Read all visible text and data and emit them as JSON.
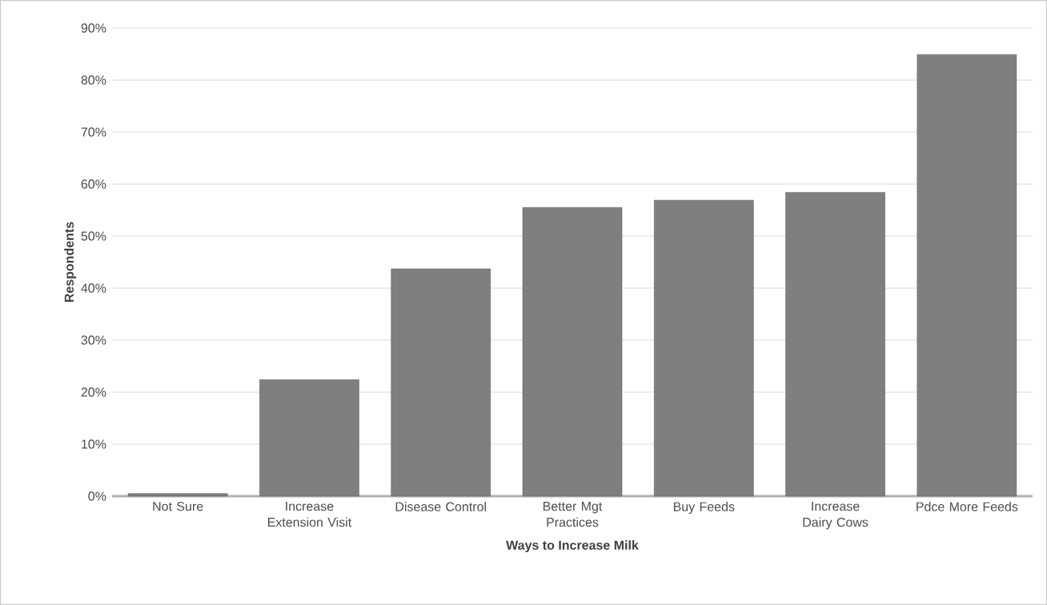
{
  "chart_data": {
    "type": "bar",
    "xlabel": "Ways to Increase Milk",
    "ylabel": "Respondents",
    "categories": [
      "Not Sure",
      "Increase Extension Visit",
      "Disease Control",
      "Better Mgt Practices",
      "Buy Feeds",
      "Increase Dairy Cows",
      "Pdce More Feeds"
    ],
    "values": [
      0.5,
      22.4,
      43.7,
      55.5,
      56.9,
      58.4,
      84.9
    ],
    "color": "#7f7f7f",
    "ylim": [
      0,
      90
    ],
    "yticks": [
      {
        "value": 0,
        "label": "0%"
      },
      {
        "value": 10,
        "label": "10%"
      },
      {
        "value": 20,
        "label": "20%"
      },
      {
        "value": 30,
        "label": "30%"
      },
      {
        "value": 40,
        "label": "40%"
      },
      {
        "value": 50,
        "label": "50%"
      },
      {
        "value": 60,
        "label": "60%"
      },
      {
        "value": 70,
        "label": "70%"
      },
      {
        "value": 80,
        "label": "80%"
      },
      {
        "value": 90,
        "label": "90%"
      }
    ],
    "grid": "y"
  }
}
